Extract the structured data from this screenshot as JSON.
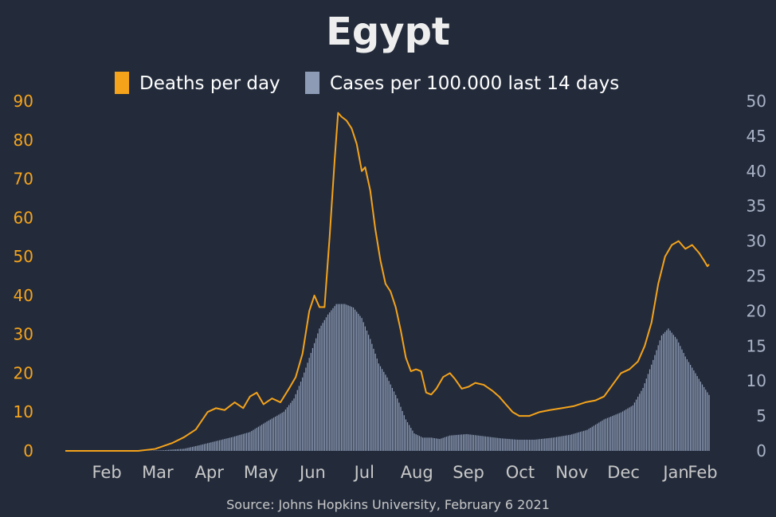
{
  "colors": {
    "background": "#232b3b",
    "deaths": "#f5a31a",
    "cases": "#8d9bb5",
    "title": "#eeeeee",
    "months": "#c8c8c8",
    "source": "#c8c8c8"
  },
  "chart_data": {
    "type": "bar+line",
    "title": "Egypt",
    "source": "Source: Johns Hopkins University, February 6 2021",
    "legend_placement": "top-center",
    "grid": false,
    "x_labels": [
      "Feb",
      "Mar",
      "Apr",
      "May",
      "Jun",
      "Jul",
      "Aug",
      "Sep",
      "Oct",
      "Nov",
      "Dec",
      "Jan",
      "Feb"
    ],
    "x_range": [
      "2020-01-22",
      "2021-02-05"
    ],
    "y_left": {
      "ticks": [
        0,
        10,
        20,
        30,
        40,
        50,
        60,
        70,
        80,
        90
      ],
      "ylim": [
        0,
        90
      ]
    },
    "y_right": {
      "ticks": [
        0,
        5,
        10,
        15,
        20,
        25,
        30,
        35,
        40,
        45,
        50
      ],
      "ylim": [
        0,
        50
      ]
    },
    "series": [
      {
        "name": "Deaths per day",
        "axis": "left",
        "kind": "line",
        "points": [
          [
            "2020-01-22",
            0
          ],
          [
            "2020-03-05",
            0
          ],
          [
            "2020-03-15",
            0.5
          ],
          [
            "2020-03-25",
            2
          ],
          [
            "2020-04-01",
            3.5
          ],
          [
            "2020-04-08",
            5.5
          ],
          [
            "2020-04-15",
            10
          ],
          [
            "2020-04-20",
            11
          ],
          [
            "2020-04-25",
            10.5
          ],
          [
            "2020-05-01",
            12.5
          ],
          [
            "2020-05-06",
            11
          ],
          [
            "2020-05-10",
            14
          ],
          [
            "2020-05-14",
            15
          ],
          [
            "2020-05-18",
            12
          ],
          [
            "2020-05-23",
            13.5
          ],
          [
            "2020-05-28",
            12.5
          ],
          [
            "2020-06-02",
            16
          ],
          [
            "2020-06-06",
            19
          ],
          [
            "2020-06-10",
            25
          ],
          [
            "2020-06-14",
            36
          ],
          [
            "2020-06-17",
            40
          ],
          [
            "2020-06-20",
            37
          ],
          [
            "2020-06-23",
            37
          ],
          [
            "2020-06-26",
            55
          ],
          [
            "2020-06-29",
            75
          ],
          [
            "2020-07-01",
            87
          ],
          [
            "2020-07-03",
            86
          ],
          [
            "2020-07-06",
            85
          ],
          [
            "2020-07-09",
            83
          ],
          [
            "2020-07-12",
            79
          ],
          [
            "2020-07-15",
            72
          ],
          [
            "2020-07-17",
            73
          ],
          [
            "2020-07-20",
            67
          ],
          [
            "2020-07-23",
            57
          ],
          [
            "2020-07-26",
            49
          ],
          [
            "2020-07-29",
            43
          ],
          [
            "2020-08-01",
            41
          ],
          [
            "2020-08-04",
            37
          ],
          [
            "2020-08-07",
            31
          ],
          [
            "2020-08-10",
            24
          ],
          [
            "2020-08-13",
            20.5
          ],
          [
            "2020-08-16",
            21
          ],
          [
            "2020-08-19",
            20.5
          ],
          [
            "2020-08-22",
            15
          ],
          [
            "2020-08-25",
            14.5
          ],
          [
            "2020-08-28",
            16
          ],
          [
            "2020-09-01",
            19
          ],
          [
            "2020-09-05",
            20
          ],
          [
            "2020-09-08",
            18.5
          ],
          [
            "2020-09-12",
            16
          ],
          [
            "2020-09-16",
            16.5
          ],
          [
            "2020-09-20",
            17.5
          ],
          [
            "2020-09-25",
            17
          ],
          [
            "2020-09-30",
            15.5
          ],
          [
            "2020-10-04",
            14
          ],
          [
            "2020-10-08",
            12
          ],
          [
            "2020-10-12",
            10
          ],
          [
            "2020-10-16",
            9
          ],
          [
            "2020-10-22",
            9
          ],
          [
            "2020-10-28",
            10
          ],
          [
            "2020-11-03",
            10.5
          ],
          [
            "2020-11-10",
            11
          ],
          [
            "2020-11-17",
            11.5
          ],
          [
            "2020-11-24",
            12.5
          ],
          [
            "2020-11-30",
            13
          ],
          [
            "2020-12-05",
            14
          ],
          [
            "2020-12-10",
            17
          ],
          [
            "2020-12-15",
            20
          ],
          [
            "2020-12-20",
            21
          ],
          [
            "2020-12-25",
            23
          ],
          [
            "2020-12-29",
            27
          ],
          [
            "2021-01-02",
            33
          ],
          [
            "2021-01-06",
            43
          ],
          [
            "2021-01-10",
            50
          ],
          [
            "2021-01-14",
            53
          ],
          [
            "2021-01-18",
            54
          ],
          [
            "2021-01-22",
            52
          ],
          [
            "2021-01-26",
            53
          ],
          [
            "2021-01-30",
            51
          ],
          [
            "2021-02-02",
            49
          ],
          [
            "2021-02-04",
            47.5
          ],
          [
            "2021-02-05",
            48
          ]
        ]
      },
      {
        "name": "Cases per 100.000 last 14 days",
        "axis": "right",
        "kind": "bar",
        "points": [
          [
            "2020-01-22",
            0
          ],
          [
            "2020-03-08",
            0
          ],
          [
            "2020-03-20",
            0.1
          ],
          [
            "2020-04-01",
            0.3
          ],
          [
            "2020-04-10",
            0.8
          ],
          [
            "2020-04-20",
            1.4
          ],
          [
            "2020-04-30",
            2
          ],
          [
            "2020-05-10",
            2.7
          ],
          [
            "2020-05-20",
            4.2
          ],
          [
            "2020-05-30",
            5.6
          ],
          [
            "2020-06-05",
            7.5
          ],
          [
            "2020-06-10",
            10.5
          ],
          [
            "2020-06-15",
            14
          ],
          [
            "2020-06-20",
            17.5
          ],
          [
            "2020-06-25",
            19.5
          ],
          [
            "2020-06-30",
            21
          ],
          [
            "2020-07-05",
            21
          ],
          [
            "2020-07-10",
            20.5
          ],
          [
            "2020-07-15",
            19
          ],
          [
            "2020-07-20",
            16
          ],
          [
            "2020-07-25",
            12.5
          ],
          [
            "2020-07-30",
            10.5
          ],
          [
            "2020-08-05",
            7.5
          ],
          [
            "2020-08-10",
            4.5
          ],
          [
            "2020-08-15",
            2.5
          ],
          [
            "2020-08-20",
            1.9
          ],
          [
            "2020-08-25",
            1.9
          ],
          [
            "2020-08-30",
            1.7
          ],
          [
            "2020-09-05",
            2.2
          ],
          [
            "2020-09-15",
            2.4
          ],
          [
            "2020-09-25",
            2.1
          ],
          [
            "2020-10-05",
            1.8
          ],
          [
            "2020-10-15",
            1.6
          ],
          [
            "2020-10-25",
            1.6
          ],
          [
            "2020-11-05",
            1.9
          ],
          [
            "2020-11-15",
            2.3
          ],
          [
            "2020-11-25",
            3
          ],
          [
            "2020-12-05",
            4.5
          ],
          [
            "2020-12-15",
            5.5
          ],
          [
            "2020-12-22",
            6.5
          ],
          [
            "2020-12-28",
            9
          ],
          [
            "2021-01-03",
            13
          ],
          [
            "2021-01-08",
            16.5
          ],
          [
            "2021-01-12",
            17.5
          ],
          [
            "2021-01-17",
            16
          ],
          [
            "2021-01-22",
            13.5
          ],
          [
            "2021-01-27",
            11.5
          ],
          [
            "2021-02-01",
            9.5
          ],
          [
            "2021-02-05",
            8
          ]
        ]
      }
    ]
  }
}
